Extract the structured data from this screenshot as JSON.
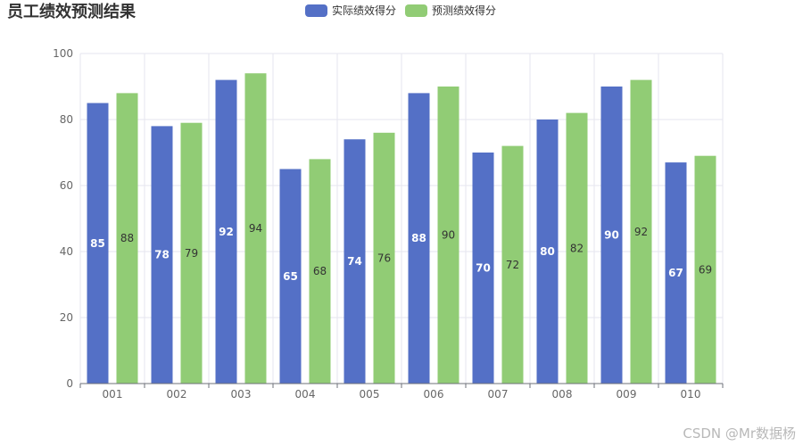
{
  "chart_data": {
    "type": "bar",
    "title": "员工绩效预测结果",
    "categories": [
      "001",
      "002",
      "003",
      "004",
      "005",
      "006",
      "007",
      "008",
      "009",
      "010"
    ],
    "series": [
      {
        "name": "实际绩效得分",
        "color": "#5470c6",
        "values": [
          85,
          78,
          92,
          65,
          74,
          88,
          70,
          80,
          90,
          67
        ]
      },
      {
        "name": "预测绩效得分",
        "color": "#91cc75",
        "values": [
          88,
          79,
          94,
          68,
          76,
          90,
          72,
          82,
          92,
          69
        ]
      }
    ],
    "xlabel": "",
    "ylabel": "",
    "ylim": [
      0,
      100
    ],
    "yticks": [
      0,
      20,
      40,
      60,
      80,
      100
    ],
    "grid": true,
    "legend_position": "top-center"
  },
  "watermark": "CSDN @Mr数据杨"
}
